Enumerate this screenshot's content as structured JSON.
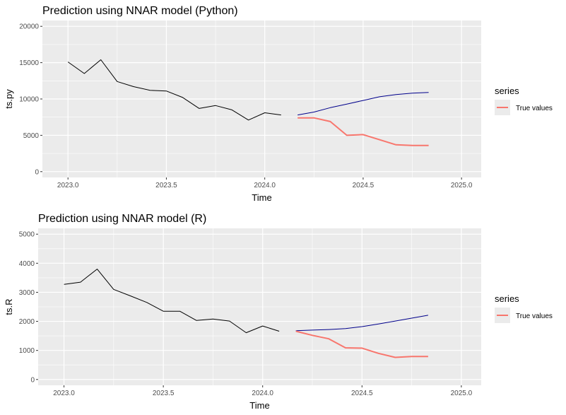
{
  "chart_data": [
    {
      "type": "line",
      "title": "Prediction using NNAR model (Python)",
      "xlabel": "Time",
      "ylabel": "ts.py",
      "xlim": [
        2022.87,
        2025.1
      ],
      "ylim": [
        -800,
        20800
      ],
      "x_ticks": [
        2023.0,
        2023.5,
        2024.0,
        2024.5,
        2025.0
      ],
      "x_tick_labels": [
        "2023.0",
        "2023.5",
        "2024.0",
        "2024.5",
        "2025.0"
      ],
      "y_ticks": [
        0,
        5000,
        10000,
        15000,
        20000
      ],
      "y_tick_labels": [
        "0",
        "5000",
        "10000",
        "15000",
        "20000"
      ],
      "grid": true,
      "legend_position": "right",
      "legend_title": "series",
      "legend_entries": [
        {
          "label": "True values",
          "color": "#F8766D"
        }
      ],
      "series": [
        {
          "color": "#000000",
          "x": [
            2023.0,
            2023.083,
            2023.167,
            2023.25,
            2023.333,
            2023.417,
            2023.5,
            2023.583,
            2023.667,
            2023.75,
            2023.833,
            2023.917,
            2024.0,
            2024.083
          ],
          "y": [
            15100,
            13500,
            15400,
            12400,
            11700,
            11200,
            11100,
            10200,
            8700,
            9100,
            8500,
            7100,
            8100,
            7800
          ]
        },
        {
          "color": "#00008B",
          "x": [
            2024.167,
            2024.25,
            2024.333,
            2024.417,
            2024.5,
            2024.583,
            2024.667,
            2024.75,
            2024.833
          ],
          "y": [
            7800,
            8200,
            8800,
            9300,
            9800,
            10300,
            10600,
            10800,
            10900
          ]
        },
        {
          "name": "True values",
          "color": "#F8766D",
          "x": [
            2024.167,
            2024.25,
            2024.333,
            2024.417,
            2024.5,
            2024.583,
            2024.667,
            2024.75,
            2024.833
          ],
          "y": [
            7400,
            7400,
            6900,
            5000,
            5100,
            4400,
            3700,
            3600,
            3600
          ]
        }
      ]
    },
    {
      "type": "line",
      "title": "Prediction using NNAR model (R)",
      "xlabel": "Time",
      "ylabel": "ts.R",
      "xlim": [
        2022.87,
        2025.1
      ],
      "ylim": [
        -200,
        5200
      ],
      "x_ticks": [
        2023.0,
        2023.5,
        2024.0,
        2024.5,
        2025.0
      ],
      "x_tick_labels": [
        "2023.0",
        "2023.5",
        "2024.0",
        "2024.5",
        "2025.0"
      ],
      "y_ticks": [
        0,
        1000,
        2000,
        3000,
        4000,
        5000
      ],
      "y_tick_labels": [
        "0",
        "1000",
        "2000",
        "3000",
        "4000",
        "5000"
      ],
      "grid": true,
      "legend_position": "right",
      "legend_title": "series",
      "legend_entries": [
        {
          "label": "True values",
          "color": "#F8766D"
        }
      ],
      "series": [
        {
          "color": "#000000",
          "x": [
            2023.0,
            2023.083,
            2023.167,
            2023.25,
            2023.333,
            2023.417,
            2023.5,
            2023.583,
            2023.667,
            2023.75,
            2023.833,
            2023.917,
            2024.0,
            2024.083
          ],
          "y": [
            3270,
            3350,
            3800,
            3100,
            2880,
            2650,
            2350,
            2350,
            2030,
            2080,
            2010,
            1610,
            1840,
            1660
          ]
        },
        {
          "color": "#00008B",
          "x": [
            2024.167,
            2024.25,
            2024.333,
            2024.417,
            2024.5,
            2024.583,
            2024.667,
            2024.75,
            2024.833
          ],
          "y": [
            1680,
            1700,
            1720,
            1750,
            1820,
            1910,
            2010,
            2110,
            2210
          ]
        },
        {
          "name": "True values",
          "color": "#F8766D",
          "x": [
            2024.167,
            2024.25,
            2024.333,
            2024.417,
            2024.5,
            2024.583,
            2024.667,
            2024.75,
            2024.833
          ],
          "y": [
            1660,
            1520,
            1400,
            1090,
            1080,
            900,
            760,
            790,
            790
          ]
        }
      ]
    }
  ]
}
